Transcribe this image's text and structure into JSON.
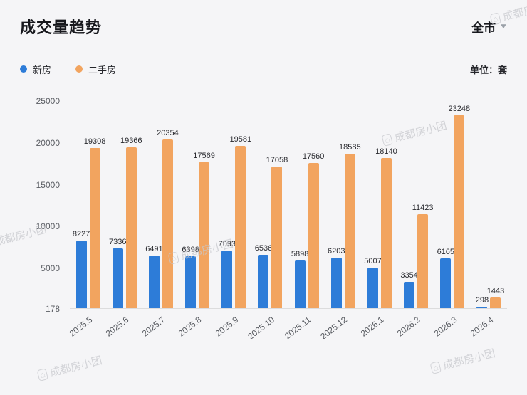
{
  "header": {
    "title": "成交量趋势",
    "region_selector": "全市",
    "unit_label": "单位：套"
  },
  "icons": {
    "chevron_down": "▼"
  },
  "legend": [
    {
      "label": "新房",
      "color": "#2d7cd8"
    },
    {
      "label": "二手房",
      "color": "#f2a45f"
    }
  ],
  "watermark": {
    "icon": "⌂",
    "text": "成都房小团"
  },
  "chart_data": {
    "type": "bar",
    "title": "成交量趋势",
    "unit": "套",
    "categories": [
      "2025.5",
      "2025.6",
      "2025.7",
      "2025.8",
      "2025.9",
      "2025.10",
      "2025.11",
      "2025.12",
      "2026.1",
      "2026.2",
      "2026.3",
      "2026.4"
    ],
    "series": [
      {
        "name": "新房",
        "color": "#2d7cd8",
        "values": [
          8227,
          7336,
          6491,
          6398,
          7093,
          6536,
          5898,
          6203,
          5007,
          3354,
          6165,
          298
        ]
      },
      {
        "name": "二手房",
        "color": "#f2a45f",
        "values": [
          19308,
          19366,
          20354,
          17569,
          19581,
          17058,
          17560,
          18585,
          18140,
          11423,
          23248,
          1443
        ]
      }
    ],
    "ylim": [
      178,
      25000
    ],
    "yticks": [
      178,
      5000,
      10000,
      15000,
      20000,
      25000
    ],
    "xlabel": "",
    "ylabel": "",
    "grid": false,
    "legend_position": "top-left",
    "value_labels": true
  }
}
